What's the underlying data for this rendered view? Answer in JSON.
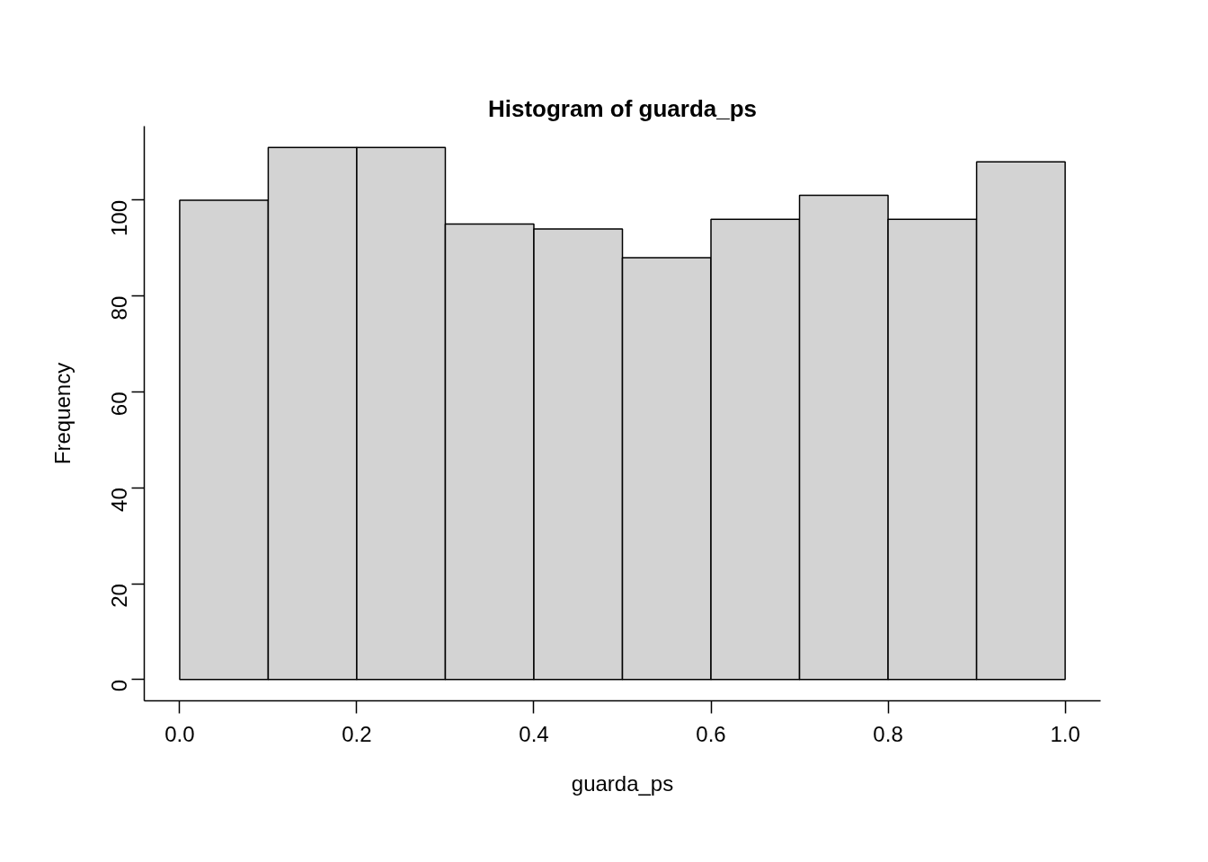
{
  "chart_data": {
    "type": "histogram",
    "title": "Histogram of guarda_ps",
    "xlabel": "guarda_ps",
    "ylabel": "Frequency",
    "bins": [
      0.0,
      0.1,
      0.2,
      0.3,
      0.4,
      0.5,
      0.6,
      0.7,
      0.8,
      0.9,
      1.0
    ],
    "values": [
      100,
      111,
      111,
      95,
      94,
      88,
      96,
      101,
      96,
      108
    ],
    "color": "#d3d3d3",
    "xlim": [
      -0.04,
      1.04
    ],
    "ylim": [
      -4.44,
      115.44
    ],
    "xticks": [
      {
        "value": 0,
        "label": "0.0"
      },
      0.2,
      0.4,
      0.6,
      0.8,
      {
        "value": 1,
        "label": "1.0"
      }
    ],
    "yticks": [
      0,
      20,
      40,
      60,
      80,
      100
    ],
    "grid": false
  }
}
